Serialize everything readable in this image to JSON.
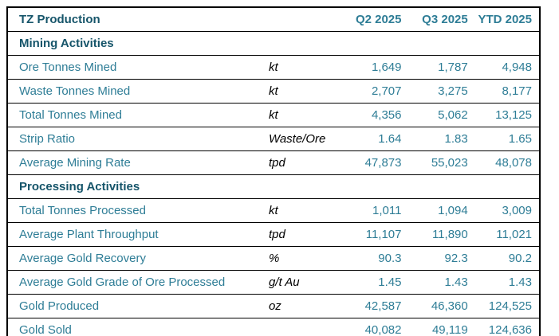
{
  "table": {
    "title": "TZ Production",
    "columns": [
      "Q2 2025",
      "Q3 2025",
      "YTD 2025"
    ],
    "rows": [
      {
        "type": "section",
        "label": "Mining Activities",
        "unit": "",
        "q2": "",
        "q3": "",
        "ytd": ""
      },
      {
        "type": "data",
        "label": "Ore Tonnes Mined",
        "unit": "kt",
        "q2": "1,649",
        "q3": "1,787",
        "ytd": "4,948"
      },
      {
        "type": "data",
        "label": "Waste Tonnes Mined",
        "unit": "kt",
        "q2": "2,707",
        "q3": "3,275",
        "ytd": "8,177"
      },
      {
        "type": "data",
        "label": "Total Tonnes Mined",
        "unit": "kt",
        "q2": "4,356",
        "q3": "5,062",
        "ytd": "13,125"
      },
      {
        "type": "data",
        "label": "Strip Ratio",
        "unit": "Waste/Ore",
        "q2": "1.64",
        "q3": "1.83",
        "ytd": "1.65"
      },
      {
        "type": "data",
        "label": "Average Mining Rate",
        "unit": "tpd",
        "q2": "47,873",
        "q3": "55,023",
        "ytd": "48,078"
      },
      {
        "type": "section",
        "label": "Processing Activities",
        "unit": "",
        "q2": "",
        "q3": "",
        "ytd": ""
      },
      {
        "type": "data",
        "label": "Total Tonnes Processed",
        "unit": "kt",
        "q2": "1,011",
        "q3": "1,094",
        "ytd": "3,009"
      },
      {
        "type": "data",
        "label": "Average Plant Throughput",
        "unit": "tpd",
        "q2": "11,107",
        "q3": "11,890",
        "ytd": "11,021"
      },
      {
        "type": "data",
        "label": "Average Gold Recovery",
        "unit": "%",
        "q2": "90.3",
        "q3": "92.3",
        "ytd": "90.2"
      },
      {
        "type": "data",
        "label": "Average Gold Grade of Ore Processed",
        "unit": "g/t Au",
        "q2": "1.45",
        "q3": "1.43",
        "ytd": "1.43"
      },
      {
        "type": "data",
        "label": "Gold Produced",
        "unit": "oz",
        "q2": "42,587",
        "q3": "46,360",
        "ytd": "124,525"
      },
      {
        "type": "data",
        "label": "Gold Sold",
        "unit": "",
        "q2": "40,082",
        "q3": "49,119",
        "ytd": "124,636"
      }
    ],
    "colors": {
      "header_text": "#16556A",
      "value_text": "#2E7D96",
      "unit_text": "#000000",
      "border": "#000000",
      "background": "#FFFFFF"
    }
  }
}
